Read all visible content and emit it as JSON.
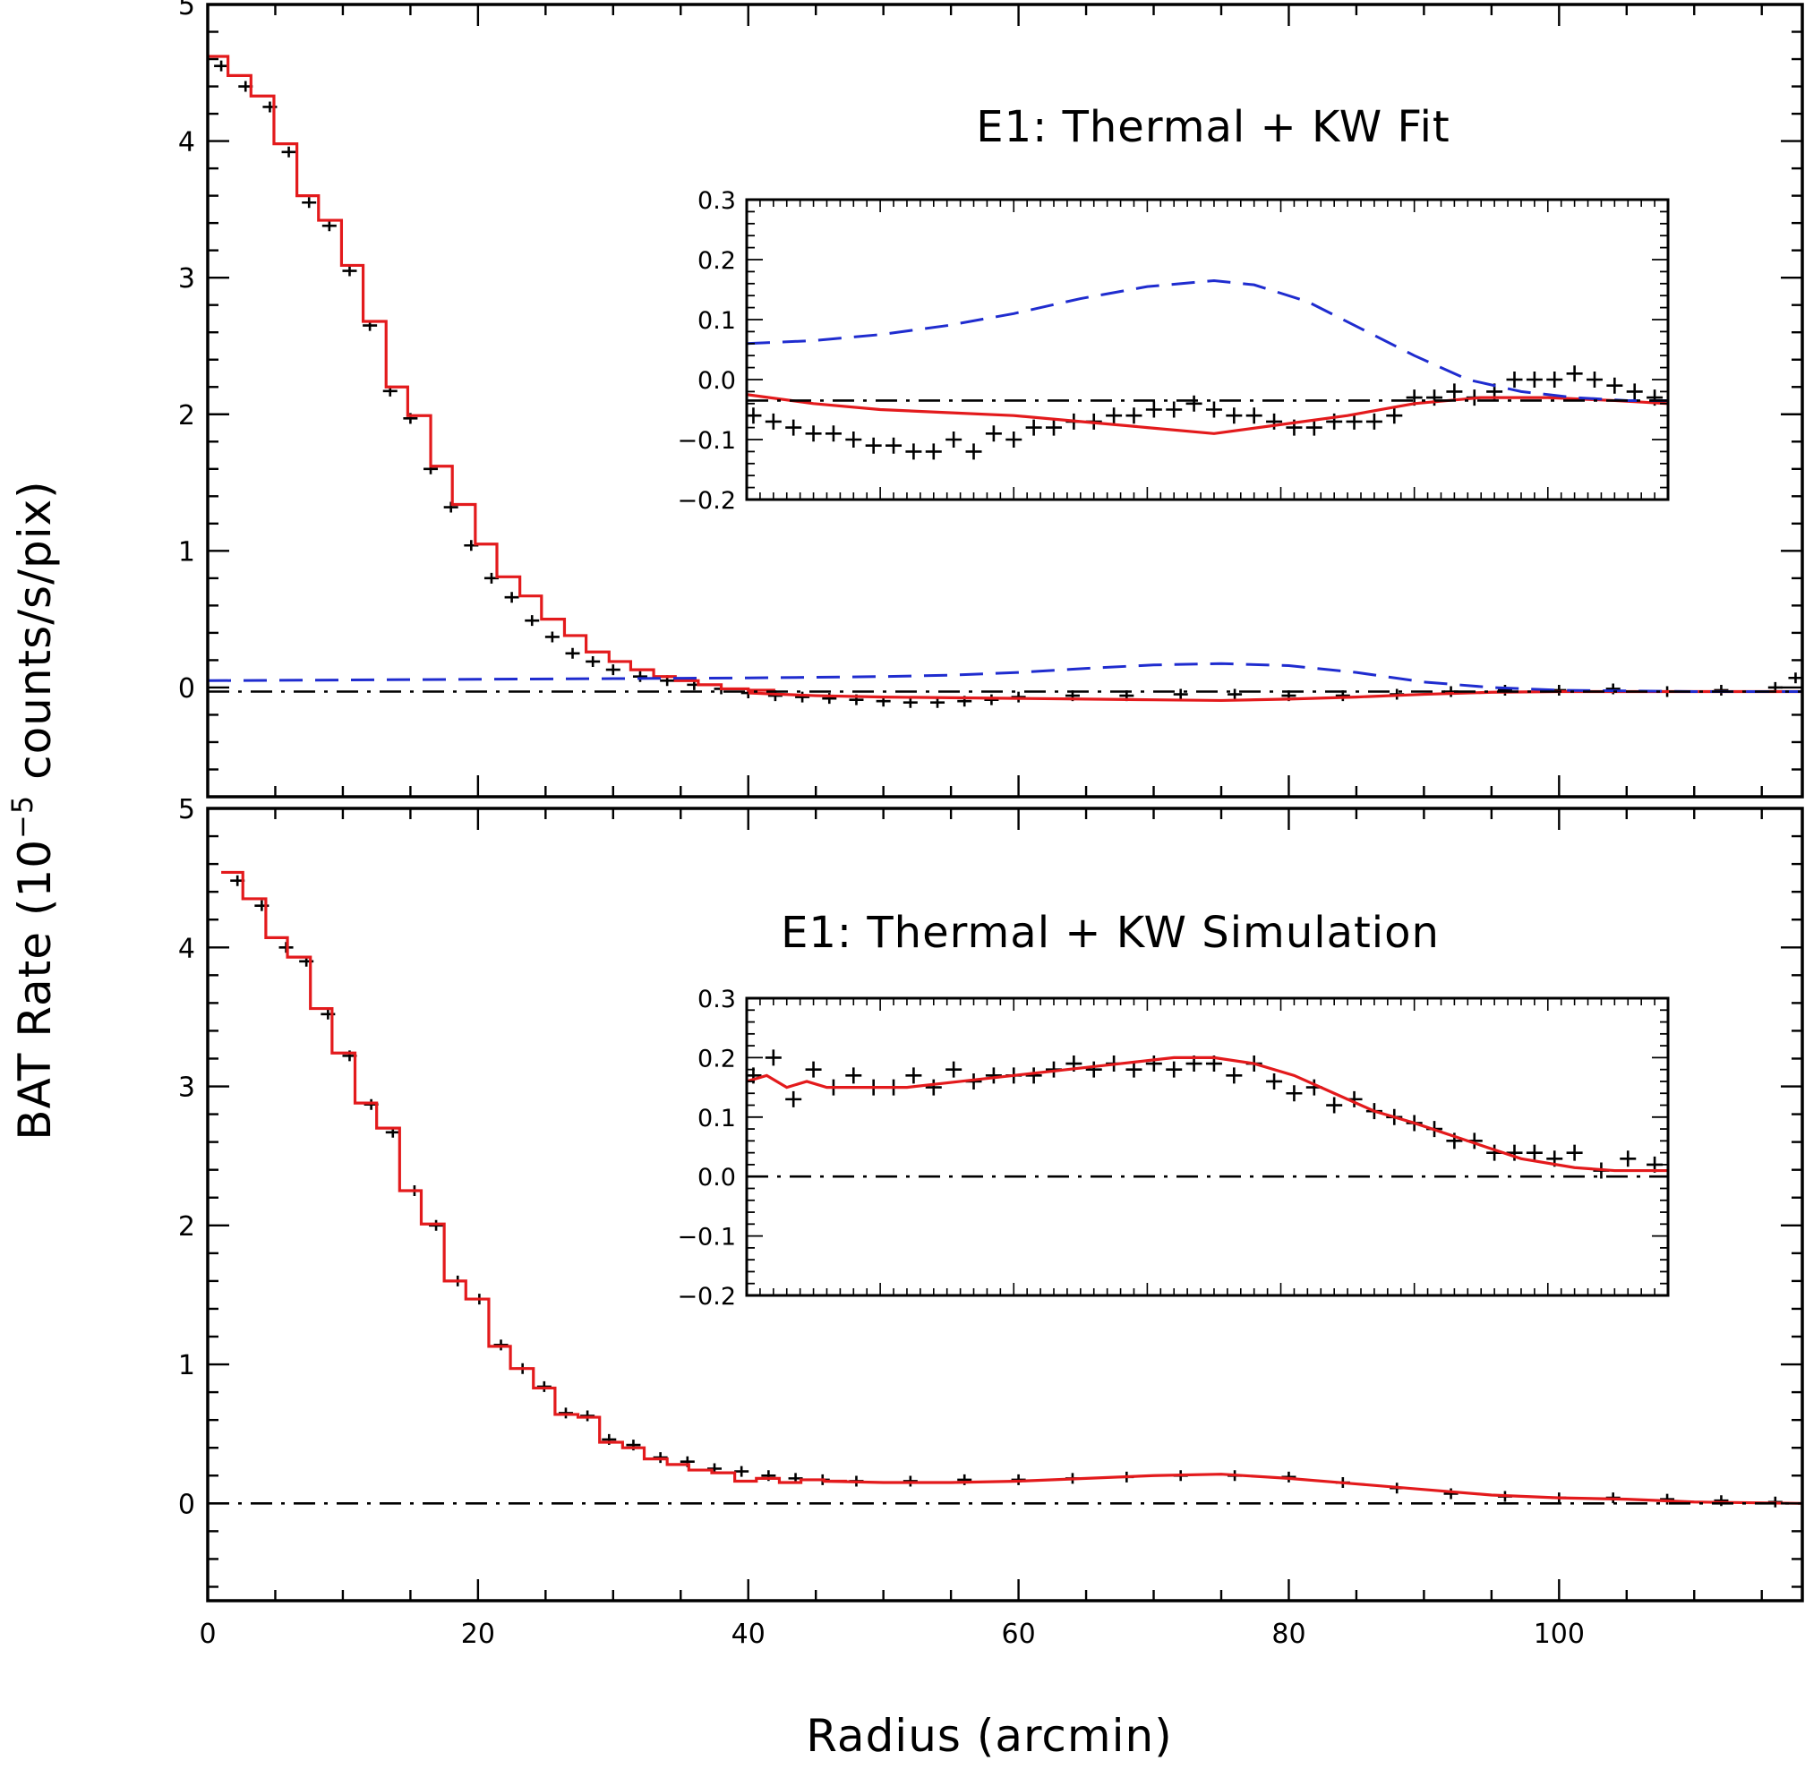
{
  "figure": {
    "xlabel": "Radius (arcmin)",
    "ylabel_pre": "BAT Rate (10",
    "ylabel_exp": "−5",
    "ylabel_post": " counts/s/pix)"
  },
  "colors": {
    "data": "#000000",
    "model": "#e31a1c",
    "kw_component": "#1f2ccf",
    "zero_line": "#000000"
  },
  "chart_data": [
    {
      "type": "line",
      "panel": "top",
      "title": "E1: Thermal + KW Fit",
      "xlim": [
        0,
        118
      ],
      "ylim": [
        -0.8,
        5
      ],
      "xticks": [
        0,
        20,
        40,
        60,
        80,
        100
      ],
      "xtick_labels": [
        "0",
        "20",
        "40",
        "60",
        "80",
        "100"
      ],
      "yticks": [
        0,
        1,
        2,
        3,
        4,
        5
      ],
      "ytick_labels": [
        "0",
        "1",
        "2",
        "3",
        "4",
        "5"
      ],
      "series": [
        {
          "role": "data",
          "style": "crosses",
          "x": [
            1,
            2.8,
            4.6,
            6,
            7.5,
            9,
            10.5,
            12,
            13.5,
            15,
            16.5,
            18,
            19.5,
            21,
            22.5,
            24,
            25.5,
            27,
            28.5,
            30,
            32,
            34,
            36,
            38,
            40,
            42,
            44,
            46,
            48,
            50,
            52,
            54,
            56,
            58,
            60,
            64,
            68,
            72,
            76,
            80,
            84,
            88,
            92,
            96,
            100,
            104,
            108,
            112,
            116,
            117.5
          ],
          "y": [
            4.55,
            4.4,
            4.25,
            3.92,
            3.55,
            3.38,
            3.05,
            2.65,
            2.17,
            1.97,
            1.6,
            1.32,
            1.04,
            0.8,
            0.66,
            0.49,
            0.37,
            0.25,
            0.19,
            0.13,
            0.08,
            0.05,
            0.02,
            -0.01,
            -0.04,
            -0.06,
            -0.07,
            -0.08,
            -0.09,
            -0.1,
            -0.11,
            -0.11,
            -0.1,
            -0.09,
            -0.07,
            -0.06,
            -0.06,
            -0.05,
            -0.05,
            -0.06,
            -0.06,
            -0.05,
            -0.03,
            -0.02,
            -0.02,
            -0.01,
            -0.03,
            -0.02,
            0.0,
            0.07
          ]
        },
        {
          "role": "model",
          "style": "step",
          "x": [
            0,
            1.5,
            3.2,
            4.9,
            6.6,
            8.2,
            9.9,
            11.5,
            13.2,
            14.8,
            16.5,
            18.1,
            19.8,
            21.4,
            23.1,
            24.7,
            26.4,
            28.0,
            29.7,
            31.3,
            33,
            34.6,
            36.3,
            38,
            40
          ],
          "y": [
            4.62,
            4.48,
            4.33,
            3.98,
            3.6,
            3.42,
            3.09,
            2.68,
            2.2,
            1.99,
            1.62,
            1.34,
            1.05,
            0.81,
            0.67,
            0.5,
            0.38,
            0.26,
            0.19,
            0.13,
            0.08,
            0.05,
            0.02,
            -0.01,
            -0.02
          ]
        },
        {
          "role": "model",
          "style": "line",
          "x": [
            40,
            45,
            50,
            55,
            60,
            65,
            70,
            75,
            80,
            85,
            90,
            95,
            100,
            105,
            110,
            118
          ],
          "y": [
            -0.04,
            -0.06,
            -0.07,
            -0.075,
            -0.08,
            -0.085,
            -0.09,
            -0.095,
            -0.085,
            -0.07,
            -0.05,
            -0.035,
            -0.03,
            -0.03,
            -0.03,
            -0.03
          ]
        },
        {
          "role": "kw_component",
          "style": "dashed",
          "x": [
            0,
            10,
            20,
            30,
            40,
            50,
            55,
            60,
            65,
            70,
            75,
            80,
            85,
            90,
            95,
            100,
            105,
            110,
            118
          ],
          "y": [
            0.05,
            0.055,
            0.06,
            0.065,
            0.07,
            0.08,
            0.09,
            0.11,
            0.14,
            0.165,
            0.175,
            0.16,
            0.11,
            0.04,
            0.0,
            -0.02,
            -0.025,
            -0.03,
            -0.03
          ]
        },
        {
          "role": "zero_line",
          "style": "dashdot",
          "x": [
            0,
            118
          ],
          "y": [
            -0.03,
            -0.03
          ]
        }
      ],
      "inset": {
        "xlim": [
          40,
          109
        ],
        "ylim": [
          -0.2,
          0.3
        ],
        "yticks": [
          -0.2,
          -0.1,
          0.0,
          0.1,
          0.2,
          0.3
        ],
        "ytick_labels": [
          "−0.2",
          "−0.1",
          "0.0",
          "0.1",
          "0.2",
          "0.3"
        ],
        "series": [
          {
            "role": "data",
            "style": "crosses",
            "x": [
              40.5,
              42,
              43.5,
              45,
              46.5,
              48,
              49.5,
              51,
              52.5,
              54,
              55.5,
              57,
              58.5,
              60,
              61.5,
              63,
              64.5,
              66,
              67.5,
              69,
              70.5,
              72,
              73.5,
              75,
              76.5,
              78,
              79.5,
              81,
              82.5,
              84,
              85.5,
              87,
              88.5,
              90,
              91.5,
              93,
              94.5,
              96,
              97.5,
              99,
              100.5,
              102,
              103.5,
              105,
              106.5,
              108
            ],
            "y": [
              -0.06,
              -0.07,
              -0.08,
              -0.09,
              -0.09,
              -0.1,
              -0.11,
              -0.11,
              -0.12,
              -0.12,
              -0.1,
              -0.12,
              -0.09,
              -0.1,
              -0.08,
              -0.08,
              -0.07,
              -0.07,
              -0.06,
              -0.06,
              -0.05,
              -0.05,
              -0.04,
              -0.05,
              -0.06,
              -0.06,
              -0.07,
              -0.08,
              -0.08,
              -0.07,
              -0.07,
              -0.07,
              -0.06,
              -0.03,
              -0.03,
              -0.02,
              -0.03,
              -0.02,
              0.0,
              0.0,
              0.0,
              0.01,
              0.0,
              -0.01,
              -0.02,
              -0.03
            ]
          },
          {
            "role": "model",
            "style": "line",
            "x": [
              40,
              45,
              50,
              55,
              60,
              65,
              70,
              75,
              80,
              85,
              90,
              95,
              100,
              105,
              109
            ],
            "y": [
              -0.025,
              -0.04,
              -0.05,
              -0.055,
              -0.06,
              -0.07,
              -0.08,
              -0.09,
              -0.075,
              -0.06,
              -0.04,
              -0.03,
              -0.03,
              -0.035,
              -0.04
            ]
          },
          {
            "role": "kw_component",
            "style": "dashed",
            "x": [
              40,
              45,
              50,
              55,
              60,
              65,
              70,
              75,
              78,
              82,
              86,
              90,
              94,
              98,
              102,
              106,
              109
            ],
            "y": [
              0.06,
              0.065,
              0.075,
              0.09,
              0.11,
              0.135,
              0.155,
              0.165,
              0.158,
              0.13,
              0.085,
              0.04,
              0.0,
              -0.02,
              -0.03,
              -0.035,
              -0.035
            ]
          },
          {
            "role": "zero_line",
            "style": "dashdot",
            "x": [
              40,
              109
            ],
            "y": [
              -0.035,
              -0.035
            ]
          }
        ]
      }
    },
    {
      "type": "line",
      "panel": "bottom",
      "title": "E1: Thermal + KW Simulation",
      "xlim": [
        0,
        118
      ],
      "ylim": [
        -0.7,
        5
      ],
      "xticks": [
        0,
        20,
        40,
        60,
        80,
        100
      ],
      "xtick_labels": [
        "0",
        "20",
        "40",
        "60",
        "80",
        "100"
      ],
      "yticks": [
        0,
        1,
        2,
        3,
        4,
        5
      ],
      "ytick_labels": [
        "0",
        "1",
        "2",
        "3",
        "4",
        "5"
      ],
      "series": [
        {
          "role": "data",
          "style": "crosses",
          "x": [
            2.2,
            4,
            5.8,
            7.3,
            8.9,
            10.5,
            12.1,
            13.7,
            15.3,
            16.9,
            18.5,
            20.1,
            21.7,
            23.3,
            24.9,
            26.5,
            28.1,
            29.7,
            31.5,
            33.5,
            35.5,
            37.5,
            39.5,
            41.5,
            43.5,
            45.5,
            48,
            52,
            56,
            60,
            64,
            68,
            72,
            76,
            80,
            84,
            88,
            92,
            96,
            100,
            104,
            108,
            112,
            116
          ],
          "y": [
            4.48,
            4.3,
            4.0,
            3.9,
            3.52,
            3.22,
            2.87,
            2.67,
            2.25,
            2.0,
            1.6,
            1.47,
            1.14,
            0.97,
            0.84,
            0.65,
            0.63,
            0.46,
            0.42,
            0.33,
            0.3,
            0.25,
            0.23,
            0.2,
            0.18,
            0.17,
            0.16,
            0.16,
            0.17,
            0.17,
            0.18,
            0.19,
            0.2,
            0.2,
            0.19,
            0.15,
            0.11,
            0.07,
            0.05,
            0.04,
            0.04,
            0.03,
            0.02,
            0.01
          ]
        },
        {
          "role": "model",
          "style": "step",
          "x": [
            1.0,
            2.6,
            4.3,
            5.9,
            7.6,
            9.2,
            10.9,
            12.5,
            14.2,
            15.8,
            17.5,
            19.1,
            20.8,
            22.4,
            24.1,
            25.7,
            27.4,
            29.0,
            30.7,
            32.3,
            34,
            35.6,
            37.3,
            39,
            40.6,
            42.3,
            43.9,
            45.6
          ],
          "y": [
            4.54,
            4.35,
            4.07,
            3.93,
            3.56,
            3.24,
            2.88,
            2.7,
            2.25,
            2.01,
            1.6,
            1.47,
            1.13,
            0.97,
            0.83,
            0.64,
            0.62,
            0.44,
            0.4,
            0.32,
            0.28,
            0.24,
            0.22,
            0.16,
            0.18,
            0.15,
            0.17,
            0.16
          ]
        },
        {
          "role": "model",
          "style": "line",
          "x": [
            45.6,
            50,
            55,
            60,
            65,
            70,
            75,
            80,
            85,
            90,
            95,
            100,
            105,
            110,
            118
          ],
          "y": [
            0.16,
            0.15,
            0.15,
            0.16,
            0.18,
            0.2,
            0.21,
            0.18,
            0.14,
            0.1,
            0.06,
            0.04,
            0.03,
            0.01,
            0.0
          ]
        },
        {
          "role": "zero_line",
          "style": "dashdot",
          "x": [
            0,
            118
          ],
          "y": [
            0.0,
            0.0
          ]
        }
      ],
      "inset": {
        "xlim": [
          40,
          109
        ],
        "ylim": [
          -0.2,
          0.3
        ],
        "yticks": [
          -0.2,
          -0.1,
          0.0,
          0.1,
          0.2,
          0.3
        ],
        "ytick_labels": [
          "−0.2",
          "−0.1",
          "0.0",
          "0.1",
          "0.2",
          "0.3"
        ],
        "series": [
          {
            "role": "data",
            "style": "crosses",
            "x": [
              40.5,
              42,
              43.5,
              45,
              46.5,
              48,
              49.5,
              51,
              52.5,
              54,
              55.5,
              57,
              58.5,
              60,
              61.5,
              63,
              64.5,
              66,
              67.5,
              69,
              70.5,
              72,
              73.5,
              75,
              76.5,
              78,
              79.5,
              81,
              82.5,
              84,
              85.5,
              87,
              88.5,
              90,
              91.5,
              93,
              94.5,
              96,
              97.5,
              99,
              100.5,
              102,
              104,
              106,
              108
            ],
            "y": [
              0.17,
              0.2,
              0.13,
              0.18,
              0.15,
              0.17,
              0.15,
              0.15,
              0.17,
              0.15,
              0.18,
              0.16,
              0.17,
              0.17,
              0.17,
              0.18,
              0.19,
              0.18,
              0.19,
              0.18,
              0.19,
              0.18,
              0.19,
              0.19,
              0.17,
              0.19,
              0.16,
              0.14,
              0.15,
              0.12,
              0.13,
              0.11,
              0.1,
              0.09,
              0.08,
              0.06,
              0.06,
              0.04,
              0.04,
              0.04,
              0.03,
              0.04,
              0.01,
              0.03,
              0.02
            ]
          },
          {
            "role": "model",
            "style": "line",
            "x": [
              40,
              41.5,
              43,
              44.5,
              46,
              48,
              52,
              56,
              60,
              64,
              68,
              72,
              75,
              78,
              81,
              84,
              87,
              90,
              94,
              98,
              102,
              105,
              109
            ],
            "y": [
              0.16,
              0.17,
              0.15,
              0.16,
              0.15,
              0.15,
              0.15,
              0.16,
              0.17,
              0.18,
              0.19,
              0.2,
              0.2,
              0.19,
              0.17,
              0.14,
              0.11,
              0.09,
              0.06,
              0.03,
              0.015,
              0.01,
              0.01
            ]
          },
          {
            "role": "zero_line",
            "style": "dashdot",
            "x": [
              40,
              109
            ],
            "y": [
              0.0,
              0.0
            ]
          }
        ]
      }
    }
  ]
}
